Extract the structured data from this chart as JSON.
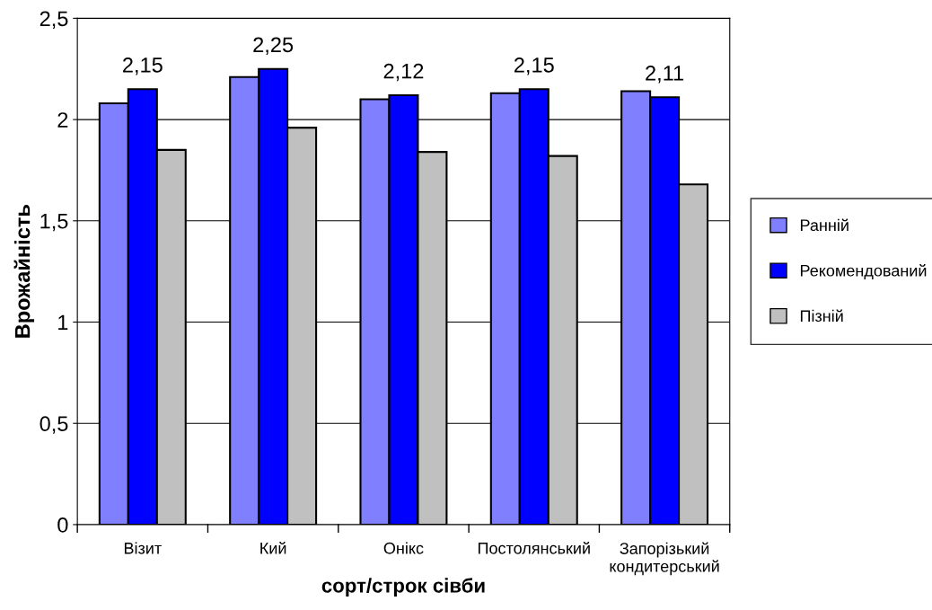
{
  "chart_data": {
    "type": "bar",
    "xlabel": "сорт/строк сівби",
    "ylabel": "Врожайність",
    "categories": [
      "Візит",
      "Кий",
      "Онікс",
      "Постолянський",
      "Запорізький\nкондитерський"
    ],
    "series": [
      {
        "name": "Ранній",
        "color": "#8080ff",
        "values": [
          2.08,
          2.21,
          2.1,
          2.13,
          2.14
        ]
      },
      {
        "name": "Рекомендований",
        "color": "#0000ff",
        "values": [
          2.15,
          2.25,
          2.12,
          2.15,
          2.11
        ],
        "value_labels": [
          "2,15",
          "2,25",
          "2,12",
          "2,15",
          "2,11"
        ]
      },
      {
        "name": "Пізній",
        "color": "#c0c0c0",
        "values": [
          1.85,
          1.96,
          1.84,
          1.82,
          1.68
        ]
      }
    ],
    "ylim": [
      0,
      2.5
    ],
    "yticks": [
      {
        "value": 0,
        "label": "0"
      },
      {
        "value": 0.5,
        "label": "0,5"
      },
      {
        "value": 1,
        "label": "1"
      },
      {
        "value": 1.5,
        "label": "1,5"
      },
      {
        "value": 2,
        "label": "2"
      },
      {
        "value": 2.5,
        "label": "2,5"
      }
    ],
    "grid": "y",
    "legend": "right"
  }
}
